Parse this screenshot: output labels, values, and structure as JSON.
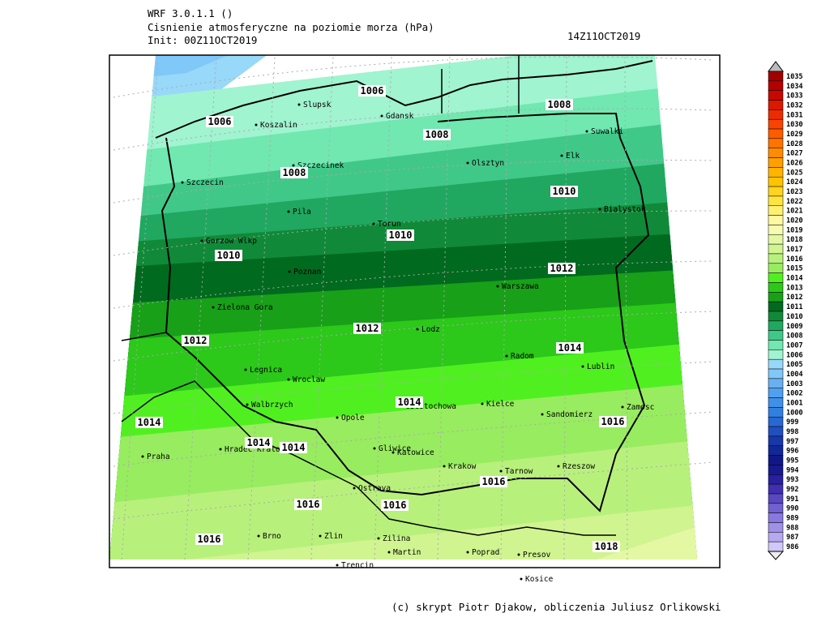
{
  "header": {
    "model": "WRF 3.0.1.1 ()",
    "title": "Cisnienie atmosferyczne na poziomie morza (hPa)",
    "init": "Init: 00Z11OCT2019",
    "valid": "14Z11OCT2019"
  },
  "map": {
    "cities": [
      "Slupsk",
      "Koszalin",
      "Gdansk",
      "Suwalki",
      "Elk",
      "Olsztyn",
      "Szczecinek",
      "Szczecin",
      "Bialystok",
      "Pila",
      "Torun",
      "Gorzow Wlkp",
      "Poznan",
      "Warszawa",
      "Zielona Gora",
      "Lodz",
      "Radom",
      "Lublin",
      "Legnica",
      "Wroclaw",
      "Walbrzych",
      "Opole",
      "Czestochowa",
      "Kielce",
      "Sandomierz",
      "Zamosc",
      "Praha",
      "Hradec Kralove",
      "Gliwice",
      "Katowice",
      "Krakow",
      "Tarnow",
      "Rzeszow",
      "Ostrava",
      "Brno",
      "Zlin",
      "Zilina",
      "Martin",
      "Poprad",
      "Presov",
      "Trencin",
      "Kosice"
    ],
    "contour_labels": [
      1006,
      1006,
      1008,
      1008,
      1008,
      1010,
      1010,
      1010,
      1012,
      1012,
      1012,
      1014,
      1014,
      1014,
      1014,
      1014,
      1016,
      1016,
      1016,
      1016,
      1016,
      1018
    ]
  },
  "colorbar": {
    "levels": [
      1035,
      1034,
      1033,
      1032,
      1031,
      1030,
      1029,
      1028,
      1027,
      1026,
      1025,
      1024,
      1023,
      1022,
      1021,
      1020,
      1019,
      1018,
      1017,
      1016,
      1015,
      1014,
      1013,
      1012,
      1011,
      1010,
      1009,
      1008,
      1007,
      1006,
      1005,
      1004,
      1003,
      1002,
      1001,
      1000,
      999,
      998,
      997,
      996,
      995,
      994,
      993,
      992,
      991,
      990,
      989,
      988,
      987,
      986
    ],
    "colors": [
      "#a00000",
      "#b40000",
      "#c80800",
      "#dc1800",
      "#ec2c00",
      "#f84400",
      "#ff5c00",
      "#ff7400",
      "#ff8c00",
      "#ffa000",
      "#ffb400",
      "#ffc400",
      "#ffd420",
      "#ffe440",
      "#fff070",
      "#fff8a0",
      "#f4fcb0",
      "#e4f8a4",
      "#d0f490",
      "#b8f07c",
      "#98ec60",
      "#50f020",
      "#2cc81a",
      "#18a018",
      "#006a1e",
      "#108a38",
      "#20a860",
      "#40c888",
      "#70e8b0",
      "#a0f4d0",
      "#98d8f8",
      "#80c8f8",
      "#68b0f0",
      "#50a0f0",
      "#4090e8",
      "#3080e0",
      "#2868d0",
      "#2050c0",
      "#1838a8",
      "#102898",
      "#101888",
      "#181890",
      "#2820a0",
      "#4030b0",
      "#5848c0",
      "#7060d0",
      "#8878e0",
      "#a090e8",
      "#b8a8f0",
      "#d0c8f8"
    ]
  },
  "footer": "(c) skrypt Piotr Djakow, obliczenia Juliusz Orlikowski"
}
